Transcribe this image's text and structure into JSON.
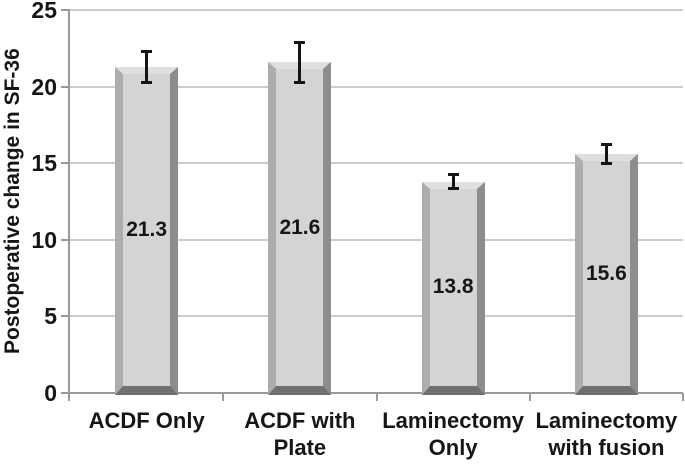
{
  "chart_data": {
    "type": "bar",
    "title": "",
    "xlabel": "",
    "ylabel": "Postoperative change in SF-36",
    "ylim": [
      0,
      25
    ],
    "yticks": [
      0,
      5,
      10,
      15,
      20,
      25
    ],
    "grid": true,
    "legend": false,
    "bar_style": "3d-beveled",
    "value_label_position": "center-of-bar",
    "categories": [
      {
        "label": "ACDF Only",
        "lines": [
          "ACDF Only"
        ],
        "value": 21.3,
        "value_label": "21.3",
        "error": 1.1
      },
      {
        "label": "ACDF with Plate",
        "lines": [
          "ACDF with",
          "Plate"
        ],
        "value": 21.6,
        "value_label": "21.6",
        "error": 1.4
      },
      {
        "label": "Laminectomy Only",
        "lines": [
          "Laminectomy",
          "Only"
        ],
        "value": 13.8,
        "value_label": "13.8",
        "error": 0.55
      },
      {
        "label": "Laminectomy with fusion",
        "lines": [
          "Laminectomy",
          "with fusion"
        ],
        "value": 15.6,
        "value_label": "15.6",
        "error": 0.7
      }
    ],
    "colors": {
      "bar_fill": "#d4d4d4",
      "bar_bevel_top": "#dfdfdf",
      "bar_bevel_left": "#adadad",
      "bar_bevel_right": "#8d8d8d",
      "bar_bevel_bottom": "#707070",
      "gridline": "#cccccc",
      "axis": "#999999",
      "error_bar": "#151515",
      "text": "#161616",
      "background": "#ffffff"
    }
  }
}
